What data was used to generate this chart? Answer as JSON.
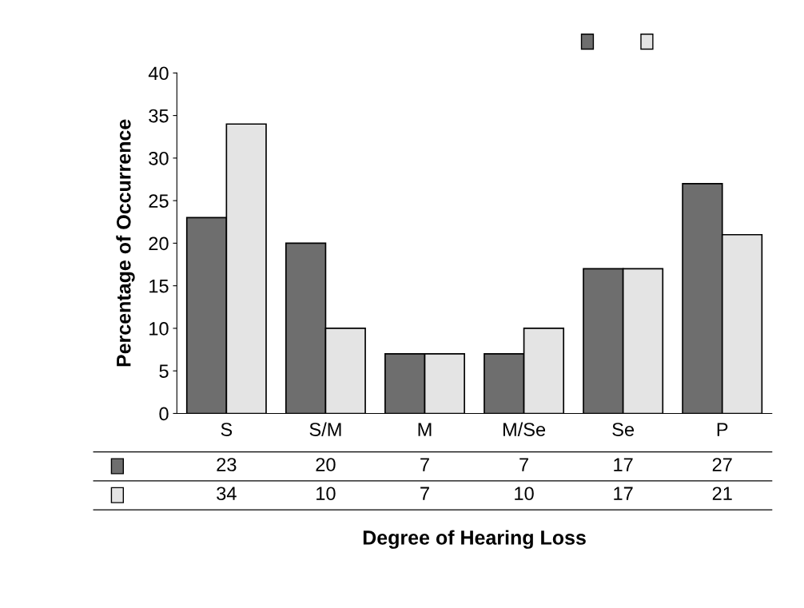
{
  "chart_data": {
    "type": "bar",
    "xlabel": "Degree of Hearing Loss",
    "ylabel": "Percentage of Occurrence",
    "categories": [
      "S",
      "S/M",
      "M",
      "M/Se",
      "Se",
      "P"
    ],
    "series": [
      {
        "color": "#6e6e6e",
        "values": [
          23,
          20,
          7,
          7,
          17,
          27
        ]
      },
      {
        "color": "#e4e4e4",
        "values": [
          34,
          10,
          7,
          10,
          17,
          21
        ]
      }
    ],
    "ylim": [
      0,
      40
    ],
    "yticks": [
      0,
      5,
      10,
      15,
      20,
      25,
      30,
      35,
      40
    ],
    "grid": false,
    "data_labels": true
  }
}
